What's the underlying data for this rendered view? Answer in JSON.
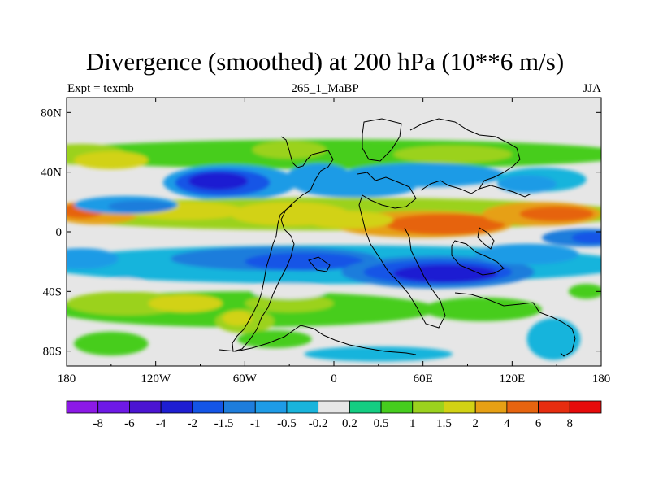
{
  "chart_data": {
    "type": "heatmap",
    "title": "Divergence (smoothed) at 200 hPa (10**6 m/s)",
    "left_label": "Expt = texmb",
    "center_label": "265_1_MaBP",
    "right_label": "JJA",
    "x_ticks": [
      {
        "value": -180,
        "label": "180"
      },
      {
        "value": -120,
        "label": "120W"
      },
      {
        "value": -60,
        "label": "60W"
      },
      {
        "value": 0,
        "label": "0"
      },
      {
        "value": 60,
        "label": "60E"
      },
      {
        "value": 120,
        "label": "120E"
      },
      {
        "value": 180,
        "label": "180"
      }
    ],
    "y_ticks": [
      {
        "value": 80,
        "label": "80N"
      },
      {
        "value": 40,
        "label": "40N"
      },
      {
        "value": 0,
        "label": "0"
      },
      {
        "value": -40,
        "label": "40S"
      },
      {
        "value": -80,
        "label": "80S"
      }
    ],
    "xlim": [
      -180,
      180
    ],
    "ylim": [
      -90,
      90
    ],
    "colorbar": {
      "levels": [
        "-8",
        "-6",
        "-4",
        "-2",
        "-1.5",
        "-1",
        "-0.5",
        "-0.2",
        "0.2",
        "0.5",
        "1",
        "1.5",
        "2",
        "4",
        "6",
        "8"
      ],
      "colors": [
        "#8c19e6",
        "#6e19e6",
        "#4b14d2",
        "#1e1ed2",
        "#1455e6",
        "#1e7ddc",
        "#1e9be6",
        "#19b4dc",
        "#e6e6e6",
        "#14cd82",
        "#46cd1e",
        "#9bd21e",
        "#d2d214",
        "#e6a014",
        "#e6640f",
        "#e62d0f",
        "#e60a0a"
      ]
    },
    "regions": [
      {
        "name": "positive-band-northern-mid-latitudes",
        "lon": [
          -180,
          180
        ],
        "lat": [
          42,
          62
        ],
        "level": "0.5 to 1"
      },
      {
        "name": "strong-convergence-north-atlantic",
        "lon": [
          -110,
          -40
        ],
        "lat": [
          20,
          45
        ],
        "level": "-4 to -2"
      },
      {
        "name": "divergence-band-equatorial",
        "lon": [
          -180,
          180
        ],
        "lat": [
          2,
          22
        ],
        "level": "1.5 to 4"
      },
      {
        "name": "strong-divergence-indian-ocean",
        "lon": [
          40,
          110
        ],
        "lat": [
          -2,
          12
        ],
        "level": "4 to 6"
      },
      {
        "name": "convergence-band-southern-tropics",
        "lon": [
          -180,
          180
        ],
        "lat": [
          -32,
          -5
        ],
        "level": "-4 to -1"
      },
      {
        "name": "strong-convergence-southern-indian-ocean",
        "lon": [
          20,
          120
        ],
        "lat": [
          -38,
          -18
        ],
        "level": "-4 to -2"
      },
      {
        "name": "positive-band-southern-mid-latitudes",
        "lon": [
          -180,
          130
        ],
        "lat": [
          -70,
          -38
        ],
        "level": "0.5 to 2"
      },
      {
        "name": "convergence-south-pacific-high-latitudes",
        "lon": [
          130,
          165
        ],
        "lat": [
          -85,
          -55
        ],
        "level": "-1 to -0.5"
      }
    ]
  }
}
